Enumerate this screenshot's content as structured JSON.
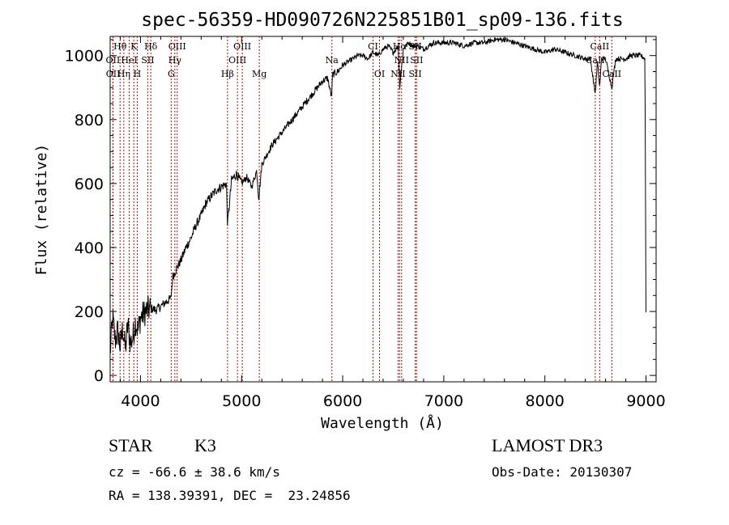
{
  "chart_data": {
    "type": "line",
    "title": "spec-56359-HD090726N225851B01_sp09-136.fits",
    "xlabel": "Wavelength (Å)",
    "ylabel": "Flux (relative)",
    "xlim": [
      3700,
      9100
    ],
    "ylim": [
      -20,
      1060
    ],
    "x_ticks": [
      4000,
      5000,
      6000,
      7000,
      8000,
      9000
    ],
    "x_tick_labels": [
      "4000",
      "5000",
      "6000",
      "7000",
      "8000",
      "9000"
    ],
    "y_ticks": [
      0,
      200,
      400,
      600,
      800,
      1000
    ],
    "y_tick_labels": [
      "0",
      "200",
      "400",
      "600",
      "800",
      "1000"
    ],
    "series": [
      {
        "name": "spectrum",
        "color": "#000000",
        "x": [
          3700,
          3725,
          3750,
          3775,
          3800,
          3825,
          3850,
          3875,
          3900,
          3925,
          3950,
          3975,
          4000,
          4050,
          4100,
          4150,
          4200,
          4250,
          4300,
          4320,
          4350,
          4400,
          4450,
          4500,
          4550,
          4600,
          4650,
          4700,
          4750,
          4800,
          4850,
          4861,
          4900,
          4950,
          5000,
          5050,
          5100,
          5150,
          5170,
          5200,
          5250,
          5300,
          5350,
          5400,
          5450,
          5500,
          5550,
          5600,
          5650,
          5700,
          5750,
          5800,
          5850,
          5890,
          5900,
          5950,
          6000,
          6050,
          6100,
          6150,
          6200,
          6250,
          6300,
          6350,
          6400,
          6450,
          6500,
          6550,
          6563,
          6600,
          6650,
          6700,
          6750,
          6800,
          6850,
          6900,
          6950,
          7000,
          7100,
          7200,
          7300,
          7400,
          7500,
          7600,
          7700,
          7800,
          7900,
          8000,
          8100,
          8200,
          8300,
          8400,
          8450,
          8498,
          8520,
          8542,
          8560,
          8600,
          8662,
          8700,
          8750,
          8800,
          8850,
          8900,
          8950,
          8990,
          9000
        ],
        "y": [
          70,
          180,
          110,
          140,
          90,
          150,
          80,
          160,
          100,
          120,
          170,
          140,
          180,
          200,
          210,
          205,
          215,
          230,
          240,
          310,
          330,
          360,
          400,
          430,
          470,
          500,
          540,
          560,
          580,
          590,
          600,
          470,
          610,
          630,
          600,
          620,
          590,
          640,
          550,
          660,
          690,
          720,
          740,
          760,
          780,
          800,
          820,
          840,
          860,
          880,
          900,
          920,
          930,
          870,
          940,
          950,
          970,
          980,
          990,
          1000,
          1000,
          990,
          1010,
          1000,
          1020,
          1030,
          1010,
          1030,
          900,
          1020,
          1040,
          1030,
          1030,
          1020,
          1030,
          1040,
          1040,
          1040,
          1040,
          1030,
          1040,
          1040,
          1050,
          1050,
          1040,
          1030,
          1020,
          1010,
          1020,
          1010,
          1000,
          990,
          990,
          880,
          980,
          900,
          990,
          990,
          900,
          990,
          990,
          990,
          1000,
          1000,
          1000,
          990,
          200
        ]
      }
    ],
    "spectral_lines": [
      {
        "name": "Hθ",
        "wavelength": 3798,
        "row": 1
      },
      {
        "name": "K",
        "wavelength": 3934,
        "row": 1
      },
      {
        "name": "Hδ",
        "wavelength": 4102,
        "row": 1
      },
      {
        "name": "OIII",
        "wavelength": 4363,
        "row": 1
      },
      {
        "name": "OIII",
        "wavelength": 5007,
        "row": 1
      },
      {
        "name": "CI",
        "wavelength": 6300,
        "row": 1
      },
      {
        "name": "Hα",
        "wavelength": 6563,
        "row": 1
      },
      {
        "name": "SII",
        "wavelength": 6717,
        "row": 1
      },
      {
        "name": "CaII",
        "wavelength": 8542,
        "row": 1
      },
      {
        "name": "OII",
        "wavelength": 3727,
        "row": 2
      },
      {
        "name": "HeI",
        "wavelength": 3889,
        "row": 2
      },
      {
        "name": "SII",
        "wavelength": 4072,
        "row": 2
      },
      {
        "name": "Hγ",
        "wavelength": 4340,
        "row": 2
      },
      {
        "name": "OIII",
        "wavelength": 4959,
        "row": 2
      },
      {
        "name": "Na",
        "wavelength": 5893,
        "row": 2
      },
      {
        "name": "NII",
        "wavelength": 6583,
        "row": 2
      },
      {
        "name": "SII",
        "wavelength": 6731,
        "row": 2
      },
      {
        "name": "CaII",
        "wavelength": 8498,
        "row": 2
      },
      {
        "name": "OII",
        "wavelength": 3729,
        "row": 3
      },
      {
        "name": "Hη",
        "wavelength": 3835,
        "row": 3
      },
      {
        "name": "H",
        "wavelength": 3968,
        "row": 3
      },
      {
        "name": "G",
        "wavelength": 4304,
        "row": 3
      },
      {
        "name": "Hβ",
        "wavelength": 4861,
        "row": 3
      },
      {
        "name": "Mg",
        "wavelength": 5175,
        "row": 3
      },
      {
        "name": "OI",
        "wavelength": 6364,
        "row": 3
      },
      {
        "name": "NII",
        "wavelength": 6548,
        "row": 3
      },
      {
        "name": "SII",
        "wavelength": 6717,
        "row": 3
      },
      {
        "name": "CaII",
        "wavelength": 8662,
        "row": 3
      }
    ],
    "line_color": "#cc0000"
  },
  "info": {
    "class_label": "STAR",
    "subclass": "K3",
    "survey": "LAMOST DR3",
    "cz": "cz = -66.6 ± 38.6 km/s",
    "obs_date": "Obs-Date: 20130307",
    "coords": "RA = 138.39391, DEC =  23.24856"
  }
}
